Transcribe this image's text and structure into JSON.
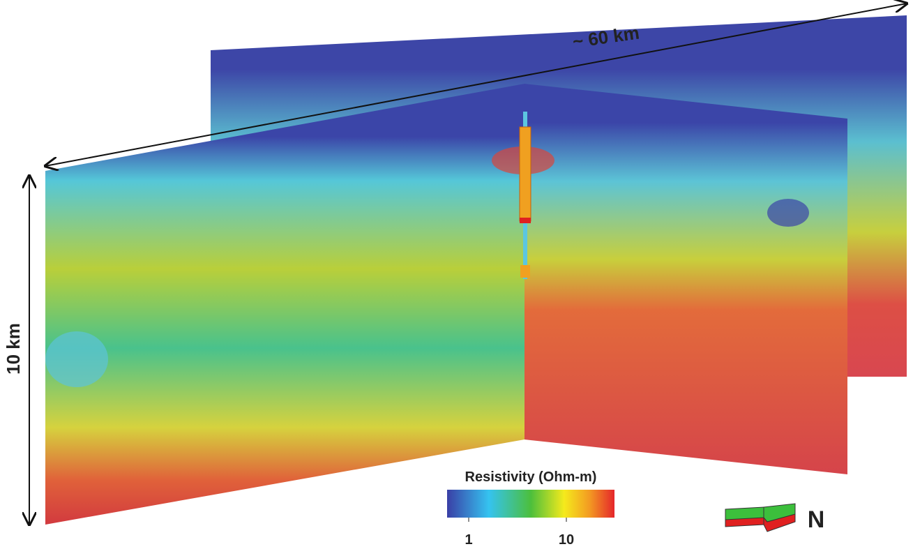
{
  "annotations": {
    "width": "~ 60 km",
    "depth": "10 km"
  },
  "colorbar": {
    "title": "Resistivity (Ohm-m)",
    "ticks": [
      "1",
      "10"
    ]
  },
  "compass": {
    "label": "N"
  }
}
